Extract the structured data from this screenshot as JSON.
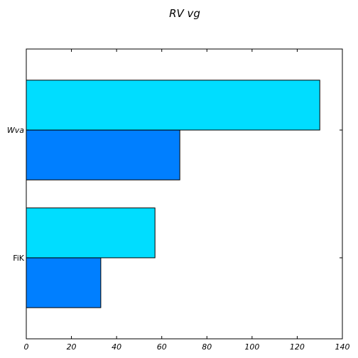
{
  "chart_data": {
    "type": "bar",
    "orientation": "horizontal",
    "title": "RV   vg",
    "xlabel": "",
    "ylabel": "",
    "categories": [
      "FiK",
      "Wva"
    ],
    "series": [
      {
        "name": "series-1",
        "color": "#007fff",
        "values": [
          33,
          68
        ]
      },
      {
        "name": "series-2",
        "color": "#00ddff",
        "values": [
          57,
          130
        ]
      }
    ],
    "xlim": [
      0,
      140
    ],
    "xticks": [
      0,
      20,
      40,
      60,
      80,
      100,
      120,
      140
    ],
    "grid": false,
    "legend": "none"
  }
}
